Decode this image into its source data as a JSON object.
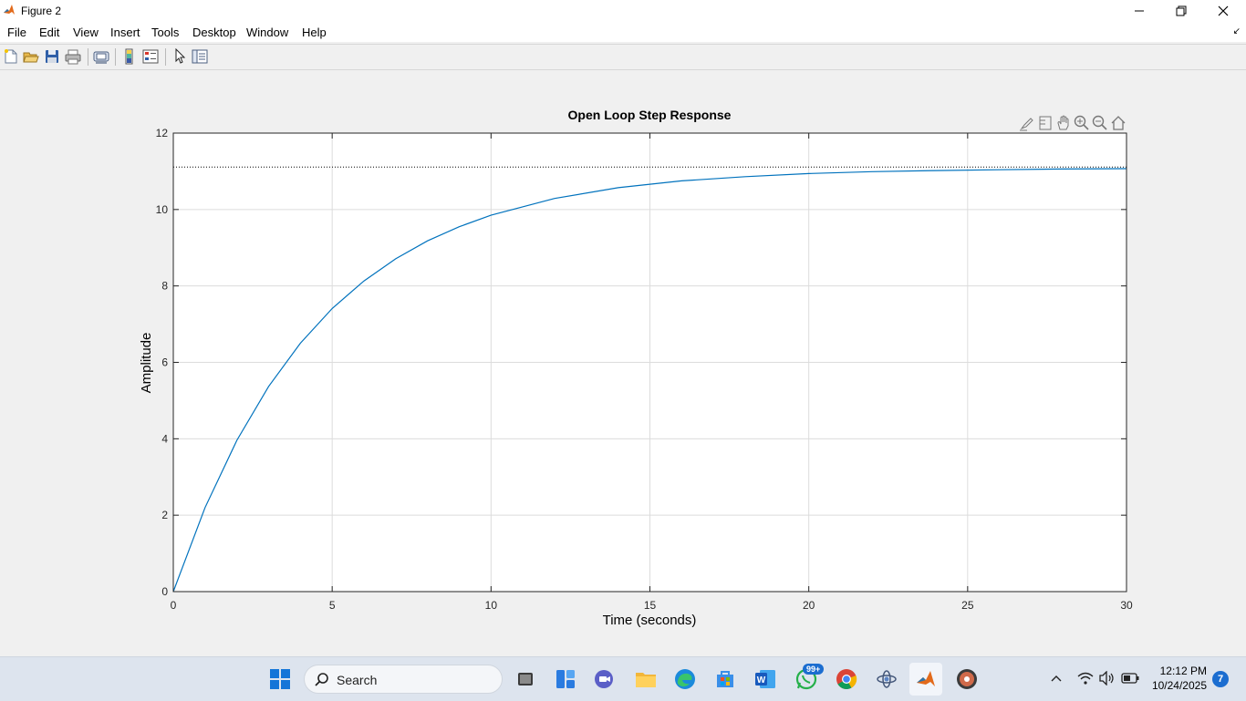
{
  "window": {
    "title": "Figure 2"
  },
  "menu": [
    "File",
    "Edit",
    "View",
    "Insert",
    "Tools",
    "Desktop",
    "Window",
    "Help"
  ],
  "toolbar_icons": [
    "new-figure-icon",
    "open-file-icon",
    "save-icon",
    "print-icon",
    "link-plot-icon",
    "insert-colorbar-icon",
    "insert-legend-icon",
    "edit-plot-icon",
    "property-inspector-icon"
  ],
  "axes_toolbar_icons": [
    "brush-icon",
    "data-tips-icon",
    "pan-icon",
    "zoom-in-icon",
    "zoom-out-icon",
    "restore-view-icon"
  ],
  "chart_data": {
    "type": "line",
    "title": "Open Loop Step Response",
    "xlabel": "Time (seconds)",
    "ylabel": "Amplitude",
    "xlim": [
      0,
      30
    ],
    "ylim": [
      0,
      12
    ],
    "xticks": [
      0,
      5,
      10,
      15,
      20,
      25,
      30
    ],
    "yticks": [
      0,
      2,
      4,
      6,
      8,
      10,
      12
    ],
    "grid": true,
    "steady_state": 11.11,
    "series": [
      {
        "x": [
          0,
          1,
          2,
          3,
          4,
          5,
          6,
          7,
          8,
          9,
          10,
          12,
          14,
          16,
          18,
          20,
          22,
          24,
          26,
          28,
          30
        ],
        "y": [
          0,
          2.2,
          3.96,
          5.37,
          6.5,
          7.41,
          8.13,
          8.71,
          9.18,
          9.55,
          9.85,
          10.29,
          10.57,
          10.75,
          10.86,
          10.94,
          10.99,
          11.02,
          11.04,
          11.06,
          11.07
        ]
      }
    ],
    "line_color": "#0072bd"
  },
  "taskbar": {
    "search_label": "Search",
    "whatsapp_badge": "99+",
    "time": "12:12 PM",
    "date": "10/24/2025",
    "notification_count": "7"
  }
}
